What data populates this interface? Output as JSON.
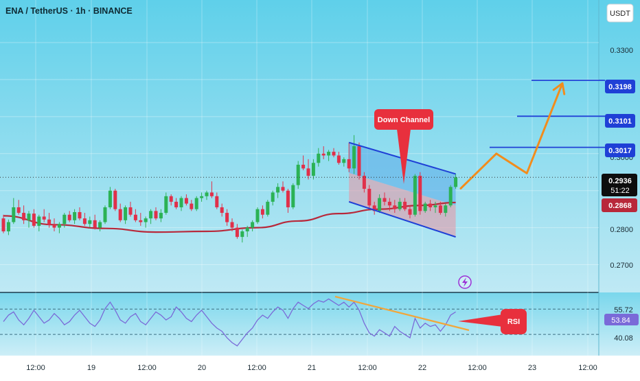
{
  "header": {
    "title": "ENA / TetherUS · 1h · BINANCE",
    "currency_button": "USDT"
  },
  "colors": {
    "bg_top": "#5fd0ea",
    "bg_bottom": "#b9e7f3",
    "up_candle": "#2bb255",
    "down_candle": "#e0304a",
    "moving_average": "#b8283a",
    "channel_line": "#1f40d6",
    "channel_upper_fill": "#5aa9e8",
    "channel_lower_fill": "#e59aa8",
    "target_line": "#1f40d6",
    "projection": "#f28c1c",
    "rsi_line": "#7a6ad8",
    "rsi_trendline": "#f2a63a",
    "callout": "#e8303d"
  },
  "annotations": {
    "down_channel_label": "Down Channel",
    "rsi_label": "RSI"
  },
  "price_axis": {
    "ticks": [
      "0.3300",
      "0.3000",
      "0.2800",
      "0.2700"
    ],
    "target_labels": [
      "0.3198",
      "0.3101",
      "0.3017"
    ],
    "current_price": "0.2936",
    "countdown": "51:22",
    "ma_value": "0.2868"
  },
  "rsi_axis": {
    "labels": [
      "55.72",
      "53.84",
      "40.08"
    ]
  },
  "time_axis": {
    "labels": [
      "12:00",
      "19",
      "12:00",
      "20",
      "12:00",
      "21",
      "12:00",
      "22",
      "12:00",
      "23",
      "12:00"
    ]
  },
  "chart_data": {
    "type": "candlestick",
    "symbol": "ENA / TetherUS",
    "interval": "1h",
    "exchange": "BINANCE",
    "y_range": [
      0.2625,
      0.3415
    ],
    "candles_ohlc": [
      [
        0.2825,
        0.2835,
        0.2785,
        0.279
      ],
      [
        0.279,
        0.2822,
        0.278,
        0.2815
      ],
      [
        0.2815,
        0.288,
        0.281,
        0.2855
      ],
      [
        0.2855,
        0.2875,
        0.2835,
        0.284
      ],
      [
        0.284,
        0.286,
        0.281,
        0.282
      ],
      [
        0.282,
        0.2845,
        0.28,
        0.2838
      ],
      [
        0.2838,
        0.285,
        0.28,
        0.2805
      ],
      [
        0.2805,
        0.2835,
        0.279,
        0.283
      ],
      [
        0.283,
        0.285,
        0.2815,
        0.2822
      ],
      [
        0.2822,
        0.284,
        0.28,
        0.2808
      ],
      [
        0.2808,
        0.2825,
        0.279,
        0.28
      ],
      [
        0.28,
        0.2815,
        0.2785,
        0.281
      ],
      [
        0.281,
        0.284,
        0.28,
        0.2835
      ],
      [
        0.2835,
        0.2845,
        0.2815,
        0.282
      ],
      [
        0.282,
        0.285,
        0.281,
        0.2842
      ],
      [
        0.2842,
        0.2855,
        0.282,
        0.2825
      ],
      [
        0.2825,
        0.284,
        0.2805,
        0.281
      ],
      [
        0.281,
        0.283,
        0.28,
        0.282
      ],
      [
        0.282,
        0.2835,
        0.2795,
        0.28
      ],
      [
        0.28,
        0.282,
        0.279,
        0.2815
      ],
      [
        0.2815,
        0.286,
        0.281,
        0.2855
      ],
      [
        0.2855,
        0.291,
        0.285,
        0.29
      ],
      [
        0.29,
        0.2905,
        0.2845,
        0.285
      ],
      [
        0.285,
        0.2865,
        0.2815,
        0.282
      ],
      [
        0.282,
        0.286,
        0.281,
        0.2855
      ],
      [
        0.2855,
        0.287,
        0.283,
        0.2835
      ],
      [
        0.2835,
        0.285,
        0.2815,
        0.282
      ],
      [
        0.282,
        0.284,
        0.2805,
        0.2815
      ],
      [
        0.2815,
        0.283,
        0.28,
        0.2825
      ],
      [
        0.2825,
        0.285,
        0.281,
        0.2845
      ],
      [
        0.2845,
        0.2855,
        0.282,
        0.2825
      ],
      [
        0.2825,
        0.285,
        0.2815,
        0.284
      ],
      [
        0.284,
        0.2895,
        0.2835,
        0.2885
      ],
      [
        0.2885,
        0.289,
        0.286,
        0.287
      ],
      [
        0.287,
        0.288,
        0.285,
        0.2855
      ],
      [
        0.2855,
        0.2885,
        0.2845,
        0.288
      ],
      [
        0.288,
        0.289,
        0.286,
        0.2865
      ],
      [
        0.2865,
        0.2875,
        0.2845,
        0.285
      ],
      [
        0.285,
        0.2885,
        0.2845,
        0.288
      ],
      [
        0.288,
        0.2895,
        0.287,
        0.2885
      ],
      [
        0.2885,
        0.29,
        0.2875,
        0.2895
      ],
      [
        0.2895,
        0.2925,
        0.288,
        0.2885
      ],
      [
        0.2885,
        0.2895,
        0.285,
        0.2855
      ],
      [
        0.2855,
        0.2865,
        0.283,
        0.284
      ],
      [
        0.284,
        0.285,
        0.2805,
        0.2815
      ],
      [
        0.2815,
        0.2825,
        0.279,
        0.28
      ],
      [
        0.28,
        0.281,
        0.277,
        0.2775
      ],
      [
        0.2775,
        0.2795,
        0.276,
        0.279
      ],
      [
        0.279,
        0.2805,
        0.2775,
        0.28
      ],
      [
        0.28,
        0.282,
        0.279,
        0.2815
      ],
      [
        0.2815,
        0.2855,
        0.281,
        0.285
      ],
      [
        0.285,
        0.286,
        0.2825,
        0.2835
      ],
      [
        0.2835,
        0.2875,
        0.283,
        0.287
      ],
      [
        0.287,
        0.29,
        0.286,
        0.2895
      ],
      [
        0.2895,
        0.292,
        0.288,
        0.291
      ],
      [
        0.291,
        0.2925,
        0.2895,
        0.29
      ],
      [
        0.29,
        0.2905,
        0.284,
        0.2855
      ],
      [
        0.2855,
        0.292,
        0.285,
        0.2915
      ],
      [
        0.2915,
        0.298,
        0.2905,
        0.297
      ],
      [
        0.297,
        0.2995,
        0.2955,
        0.296
      ],
      [
        0.296,
        0.2985,
        0.293,
        0.294
      ],
      [
        0.294,
        0.2985,
        0.293,
        0.2975
      ],
      [
        0.2975,
        0.3015,
        0.2965,
        0.3
      ],
      [
        0.3,
        0.302,
        0.2985,
        0.2995
      ],
      [
        0.2995,
        0.301,
        0.298,
        0.3005
      ],
      [
        0.3005,
        0.3015,
        0.299,
        0.2995
      ],
      [
        0.2995,
        0.3005,
        0.297,
        0.2975
      ],
      [
        0.2975,
        0.299,
        0.2965,
        0.2985
      ],
      [
        0.2985,
        0.303,
        0.295,
        0.296
      ],
      [
        0.296,
        0.305,
        0.2945,
        0.302
      ],
      [
        0.302,
        0.303,
        0.293,
        0.294
      ],
      [
        0.294,
        0.295,
        0.2895,
        0.2905
      ],
      [
        0.2905,
        0.2915,
        0.285,
        0.286
      ],
      [
        0.286,
        0.287,
        0.2835,
        0.2845
      ],
      [
        0.2845,
        0.289,
        0.284,
        0.288
      ],
      [
        0.288,
        0.2895,
        0.286,
        0.287
      ],
      [
        0.287,
        0.288,
        0.2845,
        0.286
      ],
      [
        0.286,
        0.2875,
        0.284,
        0.285
      ],
      [
        0.285,
        0.288,
        0.2845,
        0.287
      ],
      [
        0.287,
        0.288,
        0.2845,
        0.285
      ],
      [
        0.285,
        0.286,
        0.2825,
        0.2835
      ],
      [
        0.2835,
        0.2945,
        0.283,
        0.294
      ],
      [
        0.294,
        0.295,
        0.2835,
        0.2845
      ],
      [
        0.2845,
        0.287,
        0.284,
        0.2865
      ],
      [
        0.2865,
        0.2875,
        0.2845,
        0.2855
      ],
      [
        0.2855,
        0.287,
        0.284,
        0.286
      ],
      [
        0.286,
        0.287,
        0.2835,
        0.284
      ],
      [
        0.284,
        0.2865,
        0.283,
        0.286
      ],
      [
        0.286,
        0.2915,
        0.2855,
        0.291
      ],
      [
        0.291,
        0.2945,
        0.2905,
        0.2936
      ]
    ],
    "moving_average": [
      [
        0,
        0.2832
      ],
      [
        10,
        0.2808
      ],
      [
        20,
        0.2798
      ],
      [
        30,
        0.2788
      ],
      [
        40,
        0.279
      ],
      [
        50,
        0.28
      ],
      [
        58,
        0.2818
      ],
      [
        66,
        0.2838
      ],
      [
        74,
        0.285
      ],
      [
        82,
        0.286
      ],
      [
        89,
        0.2868
      ]
    ],
    "down_channel": {
      "upper": [
        [
          68,
          0.303
        ],
        [
          89,
          0.2945
        ]
      ],
      "lower": [
        [
          68,
          0.287
        ],
        [
          89,
          0.2775
        ]
      ],
      "mid": [
        [
          68,
          0.2948
        ],
        [
          89,
          0.286
        ]
      ]
    },
    "target_levels": [
      0.3198,
      0.3101,
      0.3017
    ],
    "projection_path": [
      [
        90,
        0.2906
      ],
      [
        97,
        0.3
      ],
      [
        103,
        0.2947
      ],
      [
        110,
        0.319
      ]
    ],
    "rsi": {
      "y_range": [
        27.0,
        66.0
      ],
      "dashed_levels": [
        55.72,
        40.08
      ],
      "current": 53.84,
      "values": [
        48,
        52,
        54,
        49,
        46,
        50,
        55,
        51,
        47,
        49,
        53,
        50,
        46,
        48,
        52,
        55,
        51,
        47,
        45,
        49,
        56,
        60,
        55,
        49,
        47,
        51,
        53,
        48,
        46,
        50,
        54,
        52,
        49,
        51,
        57,
        54,
        50,
        48,
        52,
        55,
        51,
        47,
        44,
        42,
        38,
        35,
        33,
        37,
        41,
        44,
        49,
        52,
        50,
        54,
        57,
        55,
        50,
        56,
        60,
        58,
        56,
        59,
        61,
        60,
        62,
        60,
        58,
        60,
        57,
        60,
        55,
        47,
        41,
        39,
        43,
        41,
        39,
        45,
        42,
        40,
        38,
        50,
        44,
        47,
        45,
        46,
        42,
        46,
        52,
        54
      ]
    }
  }
}
